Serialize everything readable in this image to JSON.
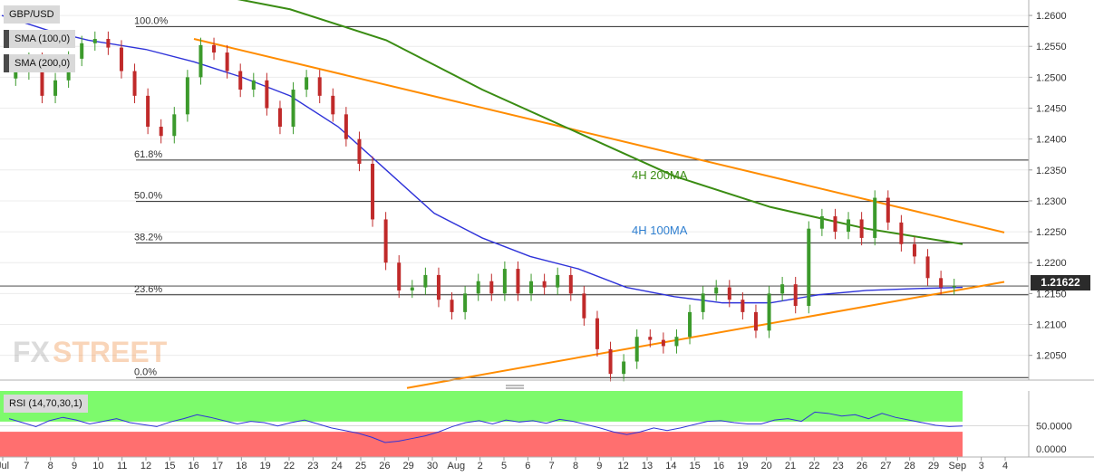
{
  "chart_data": [
    {
      "type": "candlestick",
      "symbol": "GBP/USD",
      "indicators": [
        "SMA (100,0)",
        "SMA (200,0)"
      ],
      "last_price": "1.21622",
      "ylim": [
        1.201,
        1.2625
      ],
      "y_ticks": [
        "1.2050",
        "1.2100",
        "1.2150",
        "1.2200",
        "1.2250",
        "1.2300",
        "1.2350",
        "1.2400",
        "1.2450",
        "1.2500",
        "1.2550",
        "1.2600"
      ],
      "x_ticks": [
        "Jul",
        "7",
        "8",
        "9",
        "10",
        "11",
        "12",
        "15",
        "16",
        "17",
        "18",
        "19",
        "22",
        "23",
        "24",
        "25",
        "26",
        "29",
        "30",
        "Aug",
        "2",
        "5",
        "6",
        "7",
        "8",
        "9",
        "12",
        "13",
        "14",
        "15",
        "16",
        "19",
        "20",
        "21",
        "22",
        "23",
        "26",
        "27",
        "28",
        "29",
        "Sep",
        "3",
        "4"
      ],
      "fibonacci": [
        {
          "label": "100.0%",
          "price": 1.2582
        },
        {
          "label": "61.8%",
          "price": 1.2366
        },
        {
          "label": "50.0%",
          "price": 1.2299
        },
        {
          "label": "38.2%",
          "price": 1.2232
        },
        {
          "label": "23.6%",
          "price": 1.2148
        },
        {
          "label": "0.0%",
          "price": 1.2014
        }
      ],
      "annotations": [
        "4H 200MA",
        "4H 100MA"
      ],
      "close_series": [
        1.2508,
        1.2528,
        1.247,
        1.2495,
        1.253,
        1.2555,
        1.2562,
        1.2548,
        1.251,
        1.247,
        1.242,
        1.2405,
        1.244,
        1.25,
        1.2552,
        1.254,
        1.251,
        1.248,
        1.2495,
        1.245,
        1.242,
        1.248,
        1.25,
        1.247,
        1.244,
        1.24,
        1.236,
        1.227,
        1.22,
        1.2155,
        1.216,
        1.218,
        1.214,
        1.212,
        1.215,
        1.217,
        1.215,
        1.219,
        1.215,
        1.217,
        1.216,
        1.218,
        1.215,
        1.211,
        1.206,
        1.202,
        1.204,
        1.208,
        1.2075,
        1.2065,
        1.208,
        1.212,
        1.215,
        1.216,
        1.214,
        1.212,
        1.209,
        1.215,
        1.2165,
        1.213,
        1.2255,
        1.2275,
        1.225,
        1.227,
        1.224,
        1.2305,
        1.2265,
        1.223,
        1.221,
        1.2175,
        1.216,
        1.2162
      ],
      "series": [
        {
          "name": "4H 100MA",
          "color": "#2f33d9",
          "x": [
            0,
            0.02,
            0.05,
            0.09,
            0.15,
            0.2,
            0.25,
            0.3,
            0.35,
            0.4,
            0.45,
            0.5,
            0.55,
            0.6,
            0.65,
            0.7,
            0.75,
            0.8,
            0.85,
            0.9,
            0.95,
            1.0
          ],
          "values": [
            1.26,
            1.259,
            1.2575,
            1.256,
            1.2545,
            1.2525,
            1.25,
            1.247,
            1.242,
            1.235,
            1.228,
            1.224,
            1.221,
            1.219,
            1.216,
            1.2145,
            1.2135,
            1.2135,
            1.2148,
            1.2155,
            1.2158,
            1.216
          ]
        },
        {
          "name": "4H 200MA",
          "color": "#3a8c13",
          "x": [
            0.2,
            0.3,
            0.4,
            0.5,
            0.6,
            0.7,
            0.8,
            0.9,
            1.0
          ],
          "values": [
            1.264,
            1.261,
            1.256,
            1.248,
            1.241,
            1.234,
            1.229,
            1.2255,
            1.223
          ]
        }
      ],
      "trendlines": [
        {
          "name": "resistance",
          "color": "#ff8c00",
          "from": [
            0.2,
            1.2562
          ],
          "to": [
            1.0,
            1.2265
          ]
        },
        {
          "name": "support",
          "color": "#ff8c00",
          "from": [
            0.45,
            1.2006
          ],
          "to": [
            1.0,
            1.2157
          ]
        }
      ]
    },
    {
      "type": "line",
      "indicator": "RSI (14,70,30,1)",
      "ylim": [
        0,
        100
      ],
      "y_ticks": [
        "0.0000",
        "50.0000"
      ],
      "bands": {
        "overbought": 70,
        "oversold": 30
      },
      "values": [
        58,
        52,
        46,
        55,
        60,
        56,
        50,
        54,
        58,
        52,
        49,
        46,
        53,
        58,
        64,
        60,
        55,
        50,
        54,
        52,
        47,
        52,
        56,
        50,
        44,
        40,
        36,
        30,
        22,
        24,
        28,
        32,
        38,
        46,
        52,
        55,
        50,
        56,
        53,
        55,
        51,
        57,
        54,
        49,
        44,
        38,
        34,
        38,
        44,
        40,
        44,
        49,
        54,
        55,
        52,
        50,
        50,
        56,
        58,
        54,
        68,
        66,
        62,
        64,
        58,
        66,
        60,
        56,
        52,
        48,
        46,
        47
      ],
      "color": "#2f33d9"
    }
  ]
}
